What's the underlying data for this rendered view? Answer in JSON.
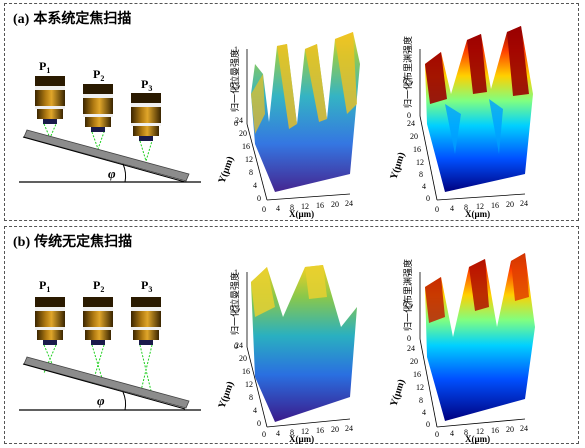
{
  "panels": [
    {
      "tag": "(a)",
      "title": "本系统定焦扫描",
      "objectives": [
        "P",
        "P",
        "P"
      ],
      "subscripts": [
        "1",
        "2",
        "3"
      ],
      "angle_label": "φ",
      "plot1": {
        "zlabel": "归一化拉曼强度",
        "xlabel": "X(μm)",
        "ylabel": "Y(μm)",
        "x_ticks": [
          "0",
          "4",
          "8",
          "12",
          "16",
          "20",
          "24"
        ],
        "y_ticks": [
          "0",
          "4",
          "8",
          "12",
          "16",
          "20",
          "24"
        ],
        "z_ticks": [
          "0",
          "0.5",
          "1"
        ]
      },
      "plot2": {
        "zlabel": "归一化布里渊强度",
        "xlabel": "X(μm)",
        "ylabel": "Y(μm)",
        "x_ticks": [
          "0",
          "4",
          "8",
          "12",
          "16",
          "20",
          "24"
        ],
        "y_ticks": [
          "0",
          "4",
          "8",
          "12",
          "16",
          "20",
          "24"
        ],
        "z_ticks": [
          "0",
          "0.5",
          "1"
        ]
      }
    },
    {
      "tag": "(b)",
      "title": "传统无定焦扫描",
      "objectives": [
        "P",
        "P",
        "P"
      ],
      "subscripts": [
        "1",
        "2",
        "3"
      ],
      "angle_label": "φ",
      "plot1": {
        "zlabel": "归一化拉曼强度",
        "xlabel": "X(μm)",
        "ylabel": "Y(μm)",
        "x_ticks": [
          "0",
          "4",
          "8",
          "12",
          "16",
          "20",
          "24"
        ],
        "y_ticks": [
          "0",
          "4",
          "8",
          "12",
          "16",
          "20",
          "24"
        ],
        "z_ticks": [
          "0",
          "0.5",
          "1"
        ]
      },
      "plot2": {
        "zlabel": "归一化布里渊强度",
        "xlabel": "X(μm)",
        "ylabel": "Y(μm)",
        "x_ticks": [
          "0",
          "4",
          "8",
          "12",
          "16",
          "20",
          "24"
        ],
        "y_ticks": [
          "0",
          "4",
          "8",
          "12",
          "16",
          "20",
          "24"
        ],
        "z_ticks": [
          "0",
          "0.5",
          "1"
        ]
      }
    }
  ]
}
